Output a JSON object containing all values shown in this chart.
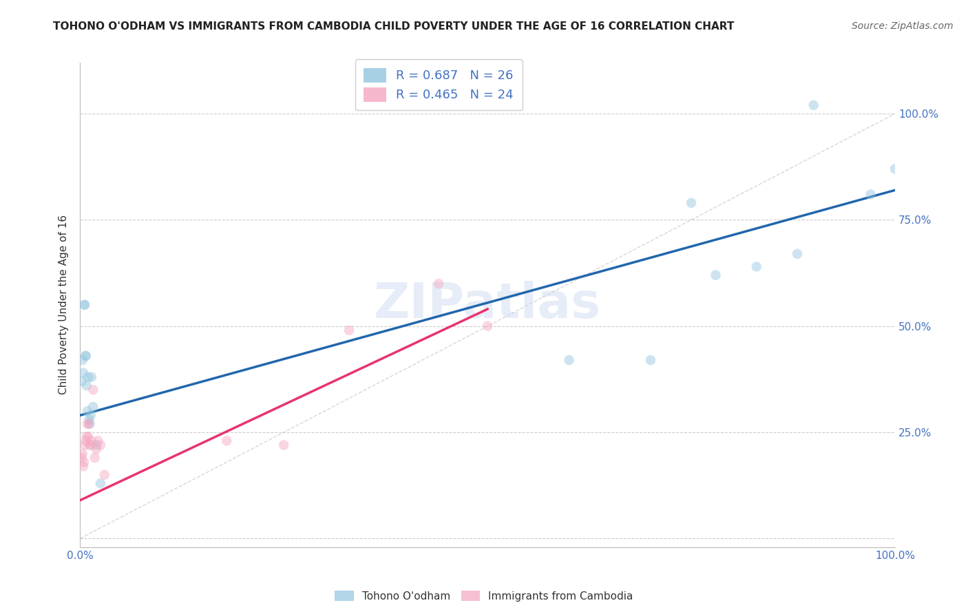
{
  "title": "TOHONO O'ODHAM VS IMMIGRANTS FROM CAMBODIA CHILD POVERTY UNDER THE AGE OF 16 CORRELATION CHART",
  "source": "Source: ZipAtlas.com",
  "ylabel": "Child Poverty Under the Age of 16",
  "watermark": "ZIPatlas",
  "legend1_label": "R = 0.687   N = 26",
  "legend2_label": "R = 0.465   N = 24",
  "legend1_color": "#92c5de",
  "legend2_color": "#f4a6c0",
  "blue_line_color": "#2166ac",
  "pink_line_color": "#e8336d",
  "diagonal_color": "#cccccc",
  "title_color": "#222222",
  "source_color": "#666666",
  "axis_label_color": "#333333",
  "tick_label_color": "#4472C4",
  "grid_color": "#cccccc",
  "background_color": "#ffffff",
  "tohono_x": [
    0.002,
    0.003,
    0.004,
    0.005,
    0.006,
    0.007,
    0.007,
    0.008,
    0.009,
    0.01,
    0.011,
    0.012,
    0.013,
    0.014,
    0.016,
    0.02,
    0.025,
    0.6,
    0.7,
    0.75,
    0.78,
    0.83,
    0.88,
    0.9,
    0.97,
    1.0
  ],
  "tohono_y": [
    0.37,
    0.42,
    0.39,
    0.55,
    0.55,
    0.43,
    0.43,
    0.36,
    0.3,
    0.38,
    0.28,
    0.27,
    0.29,
    0.38,
    0.31,
    0.22,
    0.13,
    0.42,
    0.42,
    0.79,
    0.62,
    0.64,
    0.67,
    1.02,
    0.81,
    0.87
  ],
  "cambodia_x": [
    0.002,
    0.003,
    0.004,
    0.005,
    0.006,
    0.007,
    0.008,
    0.009,
    0.01,
    0.011,
    0.012,
    0.013,
    0.014,
    0.016,
    0.018,
    0.02,
    0.022,
    0.025,
    0.03,
    0.18,
    0.25,
    0.33,
    0.44,
    0.5
  ],
  "cambodia_y": [
    0.19,
    0.2,
    0.17,
    0.18,
    0.22,
    0.23,
    0.24,
    0.27,
    0.24,
    0.27,
    0.22,
    0.22,
    0.23,
    0.35,
    0.19,
    0.21,
    0.23,
    0.22,
    0.15,
    0.23,
    0.22,
    0.49,
    0.6,
    0.5
  ],
  "blue_line_x": [
    0.0,
    1.0
  ],
  "blue_line_y": [
    0.29,
    0.82
  ],
  "pink_line_x": [
    0.0,
    0.5
  ],
  "pink_line_y": [
    0.09,
    0.54
  ],
  "xlim": [
    0.0,
    1.0
  ],
  "ylim": [
    -0.02,
    1.12
  ],
  "xticks": [
    0.0,
    0.25,
    0.5,
    0.75,
    1.0
  ],
  "xtick_labels": [
    "0.0%",
    "",
    "",
    "",
    "100.0%"
  ],
  "yticks": [
    0.0,
    0.25,
    0.5,
    0.75,
    1.0
  ],
  "ytick_labels": [
    "",
    "25.0%",
    "50.0%",
    "75.0%",
    "100.0%"
  ],
  "marker_size": 110,
  "marker_alpha": 0.45,
  "title_fontsize": 11,
  "source_fontsize": 10,
  "ylabel_fontsize": 11,
  "tick_fontsize": 11,
  "legend_fontsize": 13,
  "watermark_fontsize": 52,
  "watermark_color": "#c8d8f0",
  "watermark_alpha": 0.45
}
